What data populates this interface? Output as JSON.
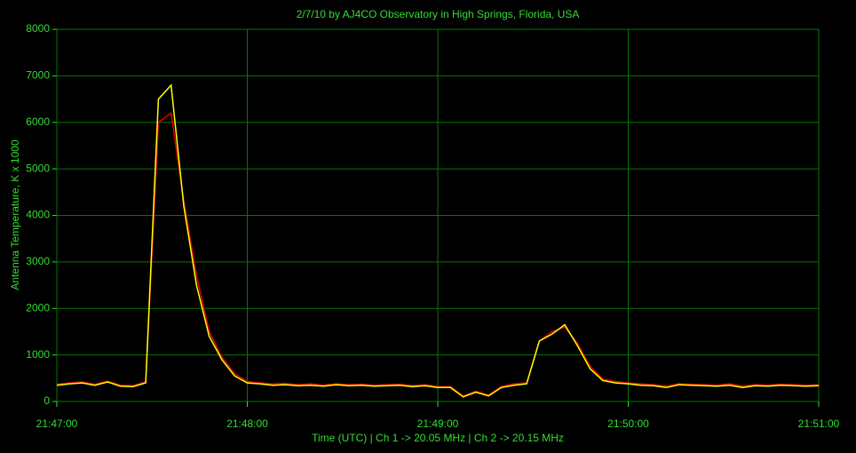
{
  "chart_data": {
    "type": "line",
    "title": "2/7/10  by  AJ4CO Observatory  in  High Springs, Florida, USA",
    "x_label": "Time (UTC)  |  Ch 1 -> 20.05 MHz  |  Ch 2 -> 20.15 MHz",
    "y_label": "Antenna Temperature, K x 1000",
    "x": [
      "21:47:00",
      "21:47:04",
      "21:47:08",
      "21:47:12",
      "21:47:16",
      "21:47:20",
      "21:47:24",
      "21:47:28",
      "21:47:32",
      "21:47:36",
      "21:47:40",
      "21:47:44",
      "21:47:48",
      "21:47:52",
      "21:47:56",
      "21:48:00",
      "21:48:04",
      "21:48:08",
      "21:48:12",
      "21:48:16",
      "21:48:20",
      "21:48:24",
      "21:48:28",
      "21:48:32",
      "21:48:36",
      "21:48:40",
      "21:48:44",
      "21:48:48",
      "21:48:52",
      "21:48:56",
      "21:49:00",
      "21:49:04",
      "21:49:08",
      "21:49:12",
      "21:49:16",
      "21:49:20",
      "21:49:24",
      "21:49:28",
      "21:49:32",
      "21:49:36",
      "21:49:40",
      "21:49:44",
      "21:49:48",
      "21:49:52",
      "21:49:56",
      "21:50:00",
      "21:50:04",
      "21:50:08",
      "21:50:12",
      "21:50:16",
      "21:50:20",
      "21:50:24",
      "21:50:28",
      "21:50:32",
      "21:50:36",
      "21:50:40",
      "21:50:44",
      "21:50:48",
      "21:50:52",
      "21:50:56",
      "21:51:00"
    ],
    "series": [
      {
        "color": "#e00000",
        "values": [
          370,
          400,
          420,
          370,
          440,
          350,
          340,
          420,
          6000,
          6200,
          4300,
          2700,
          1500,
          950,
          600,
          430,
          400,
          380,
          390,
          360,
          380,
          350,
          380,
          360,
          370,
          350,
          360,
          370,
          340,
          360,
          320,
          320,
          120,
          220,
          140,
          320,
          380,
          400,
          1300,
          1500,
          1600,
          1250,
          750,
          480,
          430,
          400,
          380,
          360,
          330,
          380,
          370,
          360,
          350,
          380,
          330,
          360,
          350,
          370,
          360,
          350,
          360
        ]
      },
      {
        "color": "#ffff00",
        "values": [
          350,
          380,
          400,
          350,
          420,
          330,
          320,
          400,
          6500,
          6800,
          4200,
          2500,
          1400,
          900,
          550,
          400,
          380,
          350,
          360,
          340,
          350,
          330,
          360,
          340,
          350,
          330,
          340,
          350,
          320,
          340,
          300,
          300,
          100,
          200,
          120,
          300,
          350,
          380,
          1300,
          1450,
          1650,
          1200,
          700,
          450,
          400,
          380,
          350,
          340,
          300,
          360,
          350,
          340,
          330,
          350,
          300,
          340,
          330,
          350,
          340,
          330,
          340
        ]
      }
    ],
    "xlim": [
      "21:47:00",
      "21:51:00"
    ],
    "xticks": [
      "21:47:00",
      "21:48:00",
      "21:49:00",
      "21:50:00",
      "21:51:00"
    ],
    "ylim": [
      0,
      8000
    ],
    "yticks": [
      0,
      1000,
      2000,
      3000,
      4000,
      5000,
      6000,
      7000,
      8000
    ],
    "grid": true
  }
}
